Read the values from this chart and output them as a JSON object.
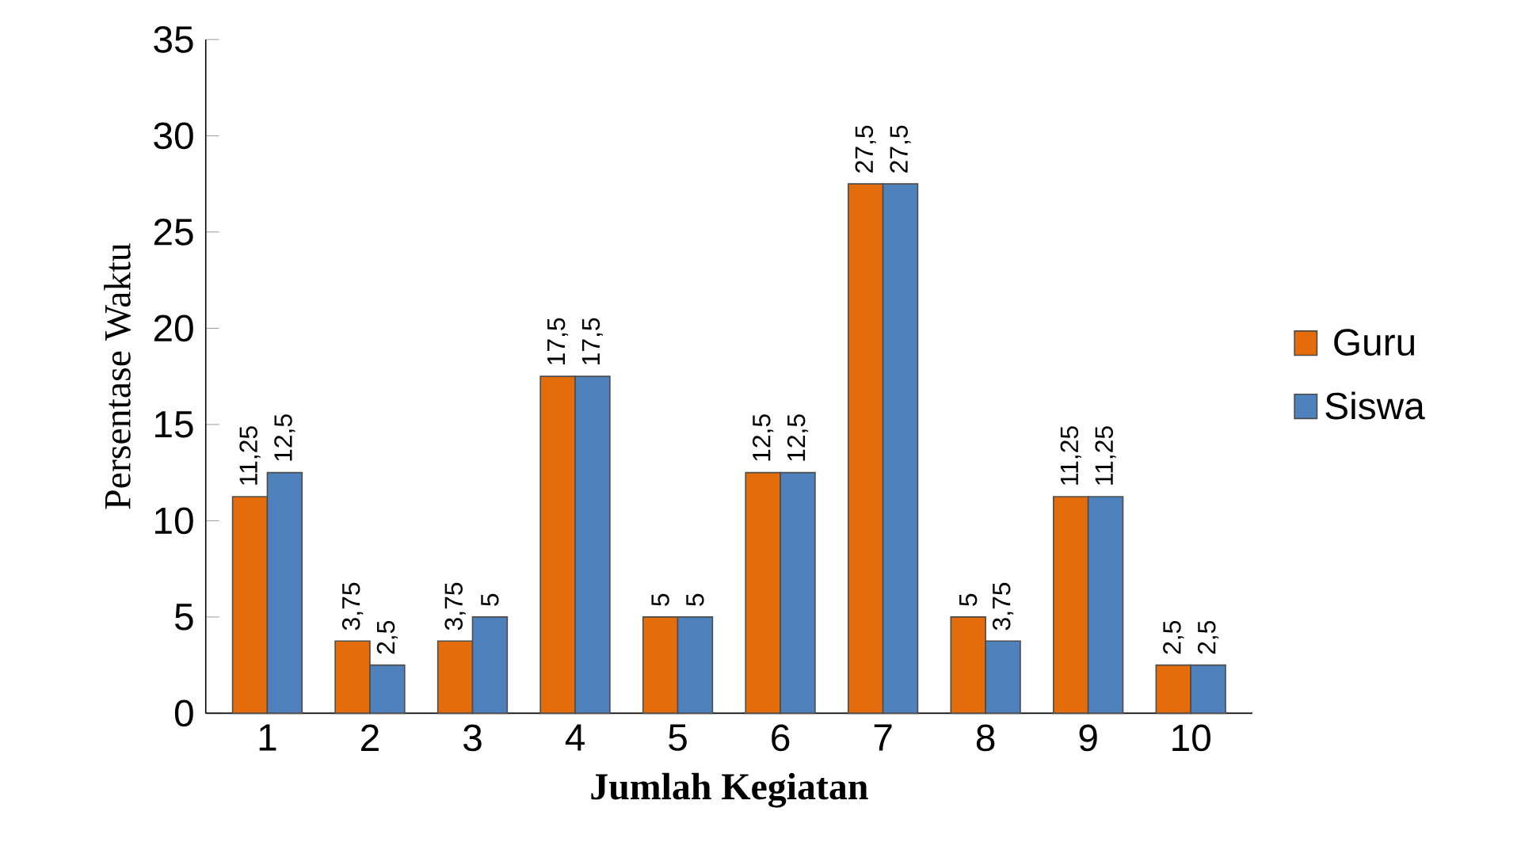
{
  "chart_data": {
    "type": "bar",
    "xlabel": "Jumlah Kegiatan",
    "ylabel": "Persentase Waktu",
    "categories": [
      "1",
      "2",
      "3",
      "4",
      "5",
      "6",
      "7",
      "8",
      "9",
      "10"
    ],
    "series": [
      {
        "name": "Guru",
        "color": "#e46c0a",
        "values": [
          11.25,
          3.75,
          3.75,
          17.5,
          5,
          12.5,
          27.5,
          5,
          11.25,
          2.5
        ],
        "value_labels": [
          "11,25",
          "3,75",
          "3,75",
          "17,5",
          "5",
          "12,5",
          "27,5",
          "5",
          "11,25",
          "2,5"
        ]
      },
      {
        "name": "Siswa",
        "color": "#4f81bd",
        "values": [
          12.5,
          2.5,
          5,
          17.5,
          5,
          12.5,
          27.5,
          3.75,
          11.25,
          2.5
        ],
        "value_labels": [
          "12,5",
          "2,5",
          "5",
          "17,5",
          "5",
          "12,5",
          "27,5",
          "3,75",
          "11,25",
          "2,5"
        ]
      }
    ],
    "ylim": [
      0,
      35
    ],
    "yticks": [
      0,
      5,
      10,
      15,
      20,
      25,
      30,
      35
    ],
    "legend": "right"
  }
}
